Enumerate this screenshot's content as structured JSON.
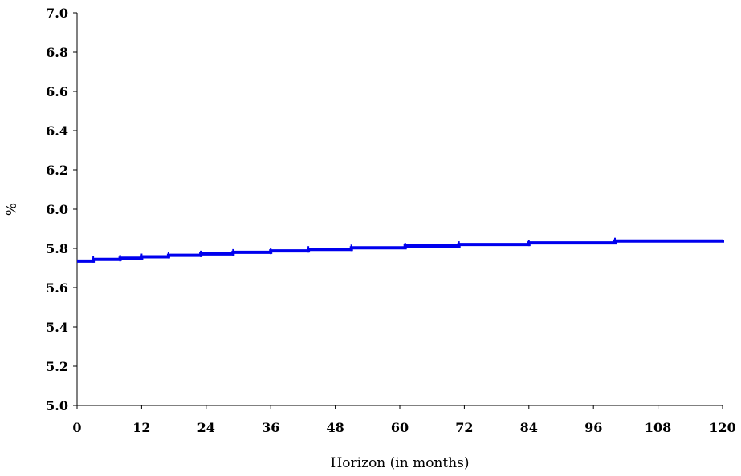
{
  "chart_data": {
    "type": "line",
    "title": "",
    "xlabel": "Horizon (in months)",
    "ylabel": "%",
    "xlim": [
      0,
      120
    ],
    "ylim": [
      5.0,
      7.0
    ],
    "x_ticks": [
      0,
      12,
      24,
      36,
      48,
      60,
      72,
      84,
      96,
      108,
      120
    ],
    "y_ticks": [
      5.0,
      5.2,
      5.4,
      5.6,
      5.8,
      6.0,
      6.2,
      6.4,
      6.6,
      6.8,
      7.0
    ],
    "y_tick_labels": [
      "5.0",
      "5.2",
      "5.4",
      "5.6",
      "5.8",
      "6.0",
      "6.2",
      "6.4",
      "6.6",
      "6.8",
      "7.0"
    ],
    "grid": false,
    "series": [
      {
        "color": "#0000ee",
        "step": true,
        "x": [
          0,
          3,
          8,
          12,
          17,
          23,
          29,
          36,
          43,
          51,
          61,
          71,
          84,
          100,
          120
        ],
        "values": [
          5.735,
          5.744,
          5.75,
          5.757,
          5.765,
          5.772,
          5.78,
          5.787,
          5.795,
          5.803,
          5.812,
          5.82,
          5.828,
          5.838,
          5.843
        ]
      }
    ]
  }
}
